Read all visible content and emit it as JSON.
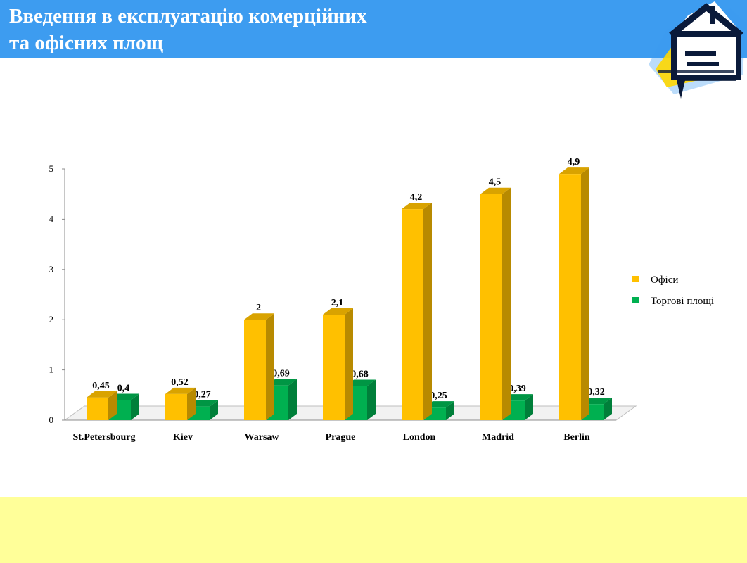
{
  "header": {
    "title_line1": "Введення в експлуатацію комерційних",
    "title_line2": "та офісних площ",
    "background": "#3d9cf0"
  },
  "logo": {
    "icon": "house-logo-icon"
  },
  "footer": {
    "background": "#ffff99"
  },
  "chart_data": {
    "type": "bar",
    "categories": [
      "St.Petersbourg",
      "Kiev",
      "Warsaw",
      "Prague",
      "London",
      "Madrid",
      "Berlin"
    ],
    "series": [
      {
        "name": "Офіси",
        "values": [
          0.45,
          0.52,
          2,
          2.1,
          4.2,
          4.5,
          4.9
        ],
        "labels": [
          "0,45",
          "0,52",
          "2",
          "2,1",
          "4,2",
          "4,5",
          "4,9"
        ],
        "color": "#ffc000"
      },
      {
        "name": "Торгові площі",
        "values": [
          0.4,
          0.27,
          0.69,
          0.68,
          0.25,
          0.39,
          0.32
        ],
        "labels": [
          "0,4",
          "0,27",
          "0,69",
          "0,68",
          "0,25",
          "0,39",
          "0,32"
        ],
        "color": "#00b050"
      }
    ],
    "y_ticks": [
      "0",
      "1",
      "2",
      "3",
      "4",
      "5"
    ],
    "ylim": [
      0,
      5
    ],
    "grid": false,
    "style": "3d-bars",
    "legend_position": "right"
  }
}
